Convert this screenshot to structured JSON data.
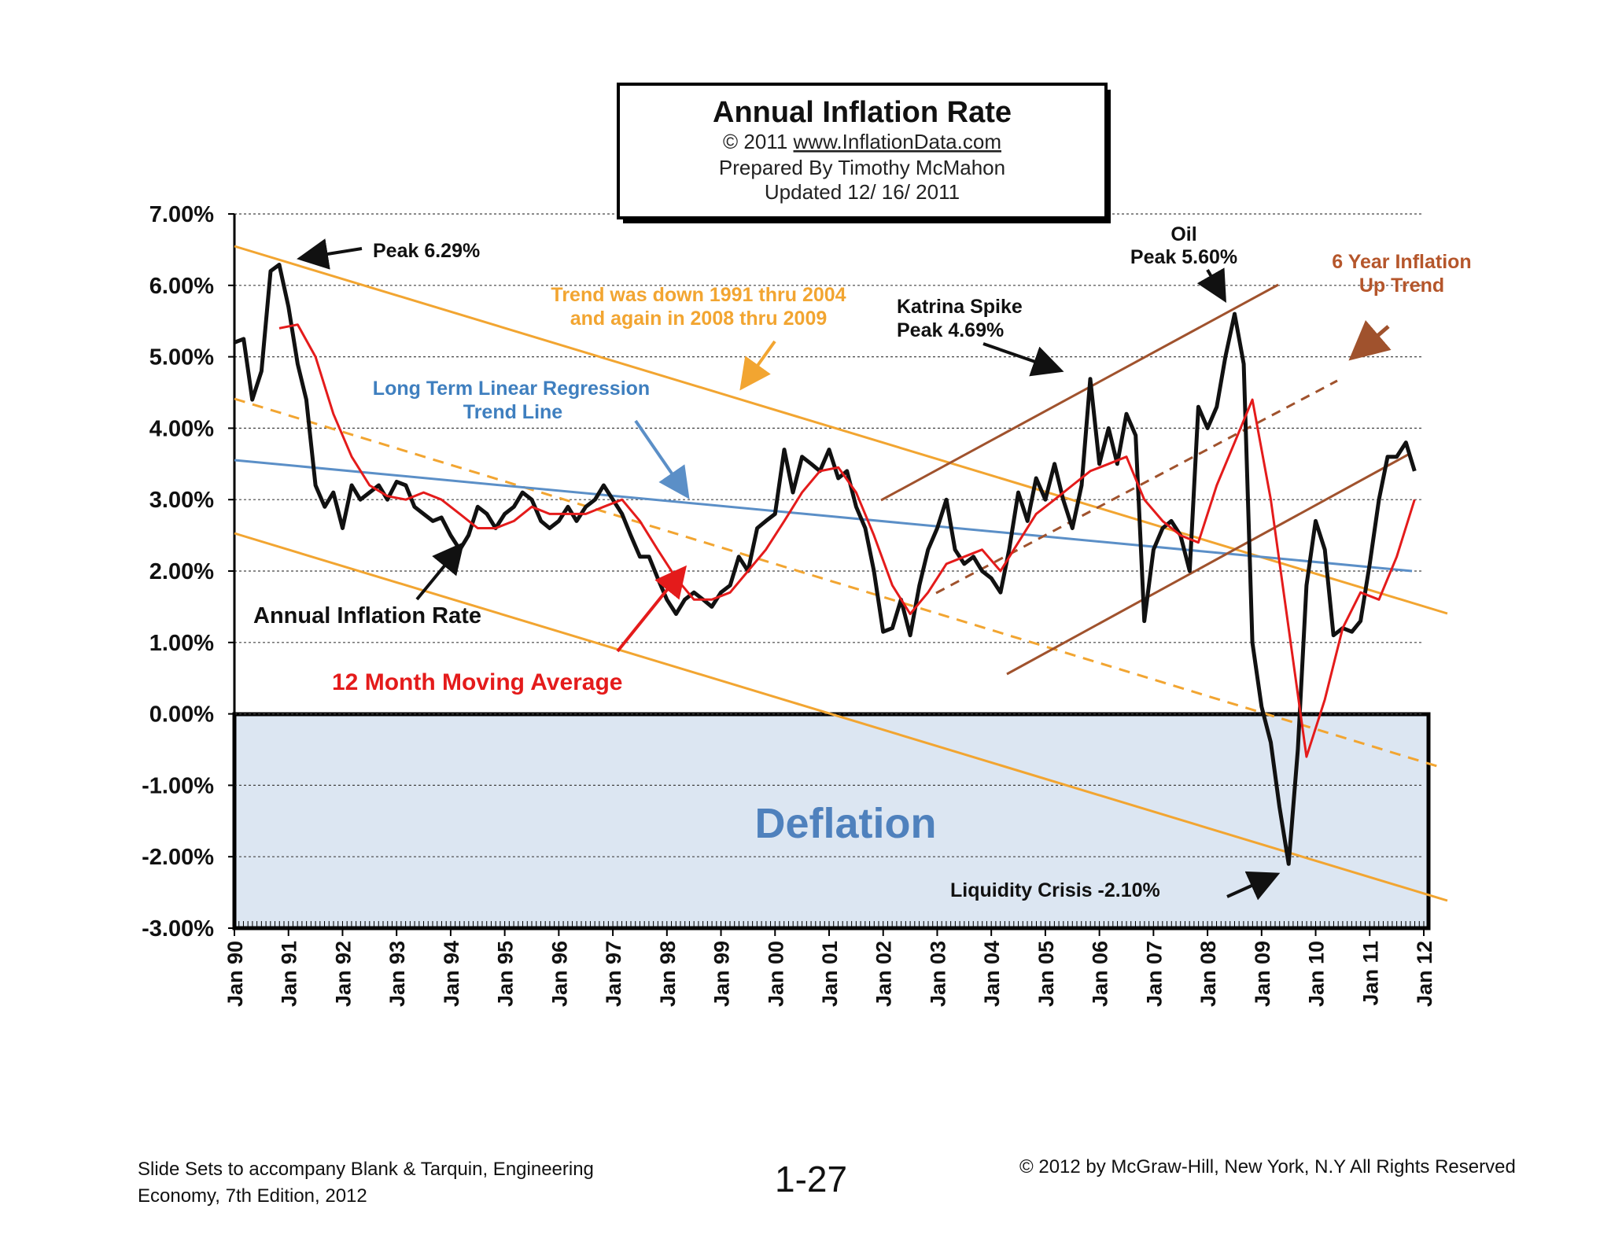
{
  "title_box": {
    "title": "Annual  Inflation  Rate",
    "copyright_prefix": "© 2011",
    "site": "www.InflationData.com",
    "prepared": "Prepared  By Timothy McMahon",
    "updated": "Updated    12/ 16/ 2011"
  },
  "annotations": {
    "peak": "Peak 6.29%",
    "trend_down_1": "Trend was down 1991 thru 2004",
    "trend_down_2": "and  again in 2008  thru  2009",
    "regression_1": "Long Term Linear Regression",
    "regression_2": "Trend Line",
    "katrina_1": "Katrina Spike",
    "katrina_2": "Peak 4.69%",
    "oil_1": "Oil",
    "oil_2": "Peak 5.60%",
    "uptrend_1": "6 Year Inflation",
    "uptrend_2": "Up Trend",
    "annual_rate": "Annual Inflation Rate",
    "moving_avg": "12 Month Moving Average",
    "deflation": "Deflation",
    "liquidity": "Liquidity Crisis  -2.10%"
  },
  "footer": {
    "left": "Slide Sets  to accompany Blank & Tarquin, Engineering Economy, 7th Edition, 2012",
    "center": "1-27",
    "right": "© 2012 by McGraw-Hill, New York, N.Y All Rights Reserved"
  },
  "colors": {
    "annual": "#111111",
    "moving_avg": "#e41b1b",
    "orange": "#f2a531",
    "blue": "#5b8fc7",
    "brown": "#a0522d",
    "deflation_fill": "#dce6f2"
  },
  "chart_data": {
    "type": "line",
    "x_tick_labels": [
      "Jan 90",
      "Jan 91",
      "Jan 92",
      "Jan 93",
      "Jan 94",
      "Jan 95",
      "Jan 96",
      "Jan 97",
      "Jan 98",
      "Jan 99",
      "Jan 00",
      "Jan 01",
      "Jan 02",
      "Jan 03",
      "Jan 04",
      "Jan 05",
      "Jan 06",
      "Jan 07",
      "Jan 08",
      "Jan 09",
      "Jan 10",
      "Jan 11",
      "Jan 12"
    ],
    "y_tick_labels": [
      "7.00%",
      "6.00%",
      "5.00%",
      "4.00%",
      "3.00%",
      "2.00%",
      "1.00%",
      "0.00%",
      "-1.00%",
      "-2.00%",
      "-3.00%"
    ],
    "x_range": [
      1990,
      2012
    ],
    "y_range": [
      -3,
      7
    ],
    "grid": true,
    "series": [
      {
        "name": "Annual Inflation Rate",
        "x": [
          1990.0,
          1990.17,
          1990.33,
          1990.5,
          1990.67,
          1990.83,
          1991.0,
          1991.17,
          1991.33,
          1991.5,
          1991.67,
          1991.83,
          1992.0,
          1992.17,
          1992.33,
          1992.5,
          1992.67,
          1992.83,
          1993.0,
          1993.17,
          1993.33,
          1993.5,
          1993.67,
          1993.83,
          1994.0,
          1994.17,
          1994.33,
          1994.5,
          1994.67,
          1994.83,
          1995.0,
          1995.17,
          1995.33,
          1995.5,
          1995.67,
          1995.83,
          1996.0,
          1996.17,
          1996.33,
          1996.5,
          1996.67,
          1996.83,
          1997.0,
          1997.17,
          1997.33,
          1997.5,
          1997.67,
          1997.83,
          1998.0,
          1998.17,
          1998.33,
          1998.5,
          1998.67,
          1998.83,
          1999.0,
          1999.17,
          1999.33,
          1999.5,
          1999.67,
          1999.83,
          2000.0,
          2000.17,
          2000.33,
          2000.5,
          2000.67,
          2000.83,
          2001.0,
          2001.17,
          2001.33,
          2001.5,
          2001.67,
          2001.83,
          2002.0,
          2002.17,
          2002.33,
          2002.5,
          2002.67,
          2002.83,
          2003.0,
          2003.17,
          2003.33,
          2003.5,
          2003.67,
          2003.83,
          2004.0,
          2004.17,
          2004.33,
          2004.5,
          2004.67,
          2004.83,
          2005.0,
          2005.17,
          2005.33,
          2005.5,
          2005.67,
          2005.83,
          2006.0,
          2006.17,
          2006.33,
          2006.5,
          2006.67,
          2006.83,
          2007.0,
          2007.17,
          2007.33,
          2007.5,
          2007.67,
          2007.83,
          2008.0,
          2008.17,
          2008.33,
          2008.5,
          2008.67,
          2008.83,
          2009.0,
          2009.17,
          2009.33,
          2009.5,
          2009.67,
          2009.83,
          2010.0,
          2010.17,
          2010.33,
          2010.5,
          2010.67,
          2010.83,
          2011.0,
          2011.17,
          2011.33,
          2011.5,
          2011.67,
          2011.83
        ],
        "y": [
          5.2,
          5.25,
          4.4,
          4.8,
          6.2,
          6.29,
          5.7,
          4.9,
          4.4,
          3.2,
          2.9,
          3.1,
          2.6,
          3.2,
          3.0,
          3.1,
          3.2,
          3.0,
          3.25,
          3.2,
          2.9,
          2.8,
          2.7,
          2.75,
          2.5,
          2.3,
          2.5,
          2.9,
          2.8,
          2.6,
          2.8,
          2.9,
          3.1,
          3.0,
          2.7,
          2.6,
          2.7,
          2.9,
          2.7,
          2.9,
          3.0,
          3.2,
          3.0,
          2.8,
          2.5,
          2.2,
          2.2,
          1.9,
          1.6,
          1.4,
          1.6,
          1.7,
          1.6,
          1.5,
          1.7,
          1.8,
          2.2,
          2.0,
          2.6,
          2.7,
          2.8,
          3.7,
          3.1,
          3.6,
          3.5,
          3.4,
          3.7,
          3.3,
          3.4,
          2.9,
          2.6,
          2.0,
          1.15,
          1.2,
          1.6,
          1.1,
          1.8,
          2.3,
          2.6,
          3.0,
          2.3,
          2.1,
          2.2,
          2.0,
          1.9,
          1.7,
          2.3,
          3.1,
          2.7,
          3.3,
          3.0,
          3.5,
          3.0,
          2.6,
          3.2,
          4.69,
          3.5,
          4.0,
          3.5,
          4.2,
          3.9,
          1.3,
          2.3,
          2.6,
          2.7,
          2.5,
          2.0,
          4.3,
          4.0,
          4.3,
          5.0,
          5.6,
          4.9,
          1.0,
          0.1,
          -0.4,
          -1.3,
          -2.1,
          -0.5,
          1.8,
          2.7,
          2.3,
          1.1,
          1.2,
          1.15,
          1.3,
          2.1,
          3.0,
          3.6,
          3.6,
          3.8,
          3.4
        ]
      },
      {
        "name": "12 Month Moving Average",
        "x": [
          1990.83,
          1991.17,
          1991.5,
          1991.83,
          1992.17,
          1992.5,
          1992.83,
          1993.17,
          1993.5,
          1993.83,
          1994.17,
          1994.5,
          1994.83,
          1995.17,
          1995.5,
          1995.83,
          1996.17,
          1996.5,
          1996.83,
          1997.17,
          1997.5,
          1997.83,
          1998.17,
          1998.5,
          1998.83,
          1999.17,
          1999.5,
          1999.83,
          2000.17,
          2000.5,
          2000.83,
          2001.17,
          2001.5,
          2001.83,
          2002.17,
          2002.5,
          2002.83,
          2003.17,
          2003.5,
          2003.83,
          2004.17,
          2004.5,
          2004.83,
          2005.17,
          2005.5,
          2005.83,
          2006.17,
          2006.5,
          2006.83,
          2007.17,
          2007.5,
          2007.83,
          2008.17,
          2008.5,
          2008.83,
          2009.17,
          2009.5,
          2009.83,
          2010.17,
          2010.5,
          2010.83,
          2011.17,
          2011.5,
          2011.83
        ],
        "y": [
          5.4,
          5.45,
          5.0,
          4.2,
          3.6,
          3.2,
          3.05,
          3.0,
          3.1,
          3.0,
          2.8,
          2.6,
          2.6,
          2.7,
          2.9,
          2.8,
          2.8,
          2.8,
          2.9,
          3.0,
          2.7,
          2.3,
          1.9,
          1.6,
          1.6,
          1.7,
          2.0,
          2.3,
          2.7,
          3.1,
          3.4,
          3.45,
          3.1,
          2.5,
          1.8,
          1.4,
          1.7,
          2.1,
          2.2,
          2.3,
          2.0,
          2.4,
          2.8,
          3.0,
          3.2,
          3.4,
          3.5,
          3.6,
          3.0,
          2.7,
          2.5,
          2.4,
          3.2,
          3.8,
          4.4,
          3.0,
          1.2,
          -0.6,
          0.2,
          1.2,
          1.7,
          1.6,
          2.2,
          3.0
        ]
      }
    ]
  }
}
